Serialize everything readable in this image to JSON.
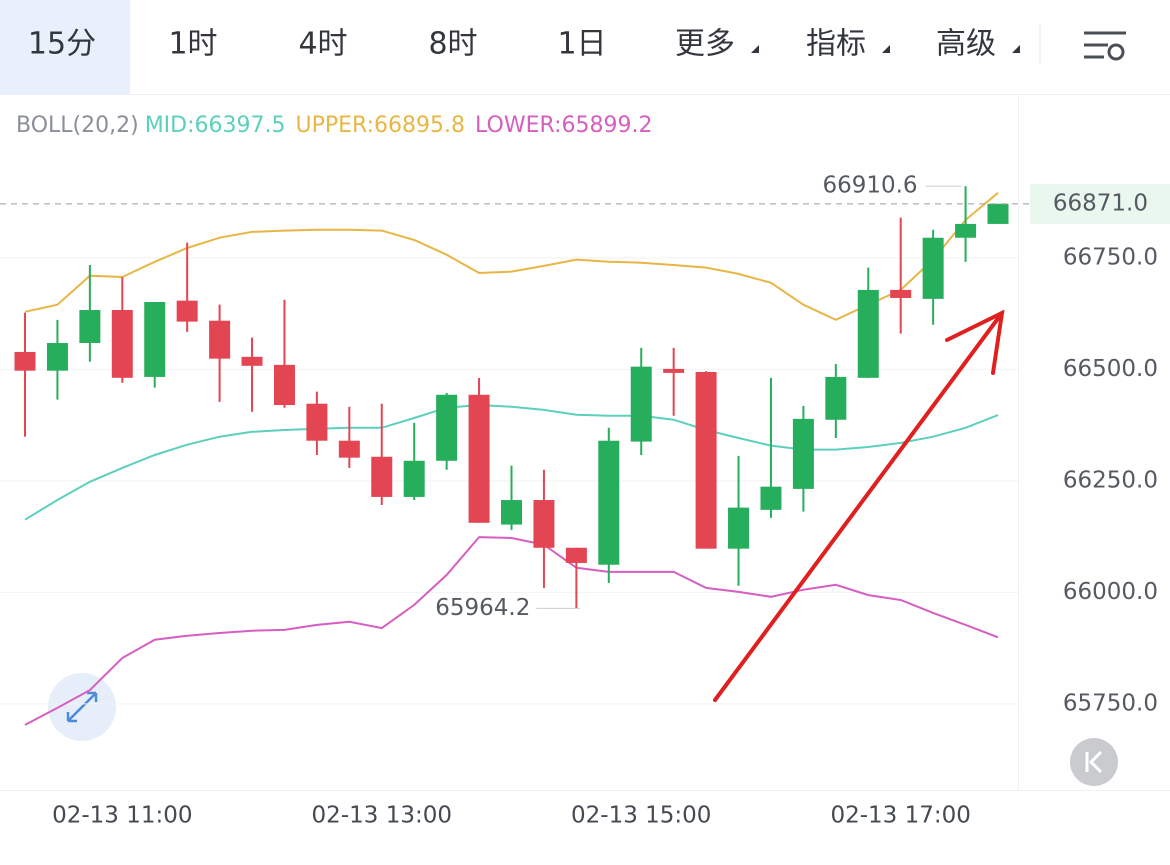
{
  "tabs": [
    "15分",
    "1时",
    "4时",
    "8时",
    "1日",
    "更多",
    "指标",
    "高级"
  ],
  "chart_data": {
    "type": "candlestick",
    "indicator": "BOLL(20,2)",
    "categories": [
      null,
      null,
      null,
      "02-13 11:00",
      null,
      null,
      null,
      null,
      null,
      null,
      null,
      "02-13 13:00",
      null,
      null,
      null,
      null,
      null,
      null,
      null,
      "02-13 15:00",
      null,
      null,
      null,
      null,
      null,
      null,
      null,
      "02-13 17:00",
      null,
      null,
      null
    ],
    "open": [
      66539,
      66497,
      66559,
      66633,
      66483,
      66654,
      66609,
      66528,
      66510,
      66423,
      66340,
      66304,
      66214,
      66295,
      66443,
      66152,
      66207,
      66100,
      66062,
      66338,
      66501,
      66494,
      66098,
      66185,
      66232,
      66387,
      66481,
      66678,
      66658,
      66795,
      66826
    ],
    "high": [
      66627,
      66611,
      66734,
      66707,
      66651,
      66784,
      66645,
      66571,
      66656,
      66450,
      66416,
      66423,
      66380,
      66447,
      66481,
      66284,
      66275,
      66100,
      66369,
      66548,
      66548,
      66496,
      66306,
      66481,
      66418,
      66512,
      66728,
      66840,
      66813,
      66910.6,
      66871
    ],
    "low": [
      66349,
      66432,
      66517,
      66470,
      66459,
      66584,
      66427,
      66405,
      66414,
      66308,
      66279,
      66196,
      66207,
      66275,
      66156,
      66140,
      66010,
      65964.2,
      66021,
      66308,
      66396,
      66098,
      66015,
      66167,
      66181,
      66346,
      66481,
      66580,
      66600,
      66741,
      66826
    ],
    "close": [
      66497,
      66559,
      66633,
      66481,
      66651,
      66607,
      66524,
      66508,
      66420,
      66340,
      66302,
      66214,
      66295,
      66443,
      66156,
      66207,
      66100,
      66066,
      66340,
      66506,
      66492,
      66098,
      66190,
      66237,
      66389,
      66483,
      66678,
      66660,
      66795,
      66826,
      66871
    ],
    "up_color": "#27ae5c",
    "down_color": "#e34552",
    "bands": [
      {
        "label": "MID:66397.5",
        "color": "#5ccfbd",
        "values": [
          66163,
          66207,
          66248,
          66279,
          66308,
          66331,
          66349,
          66360,
          66364,
          66367,
          66369,
          66369,
          66391,
          66414,
          66420,
          66416,
          66409,
          66398,
          66396,
          66396,
          66387,
          66364,
          66346,
          66329,
          66320,
          66320,
          66326,
          66335,
          66349,
          66369,
          66397.5
        ]
      },
      {
        "label": "UPPER:66895.8",
        "color": "#e8b645",
        "values": [
          66629,
          66645,
          66710,
          66707,
          66741,
          66772,
          66795,
          66808,
          66811,
          66813,
          66813,
          66811,
          66790,
          66757,
          66716,
          66719,
          66732,
          66746,
          66741,
          66739,
          66734,
          66728,
          66714,
          66694,
          66645,
          66611,
          66645,
          66678,
          66746,
          66835,
          66895.8
        ]
      },
      {
        "label": "LOWER:65899.2",
        "color": "#d65ec0",
        "values": [
          65703,
          65741,
          65781,
          65853,
          65894,
          65903,
          65909,
          65914,
          65916,
          65927,
          65934,
          65920,
          65972,
          66039,
          66124,
          66122,
          66107,
          66055,
          66046,
          66046,
          66046,
          66010,
          66001,
          65990,
          66006,
          66017,
          65994,
          65983,
          65954,
          65927,
          65899.2
        ]
      }
    ],
    "last_price_label": "66871.0",
    "ylim": [
      65557,
      67115
    ],
    "yticks": [
      {
        "value": 65750,
        "label": "65750.0"
      },
      {
        "value": 66000,
        "label": "66000.0"
      },
      {
        "value": 66250,
        "label": "66250.0"
      },
      {
        "value": 66500,
        "label": "66500.0"
      },
      {
        "value": 66750,
        "label": "66750.0"
      }
    ],
    "grid": true
  }
}
